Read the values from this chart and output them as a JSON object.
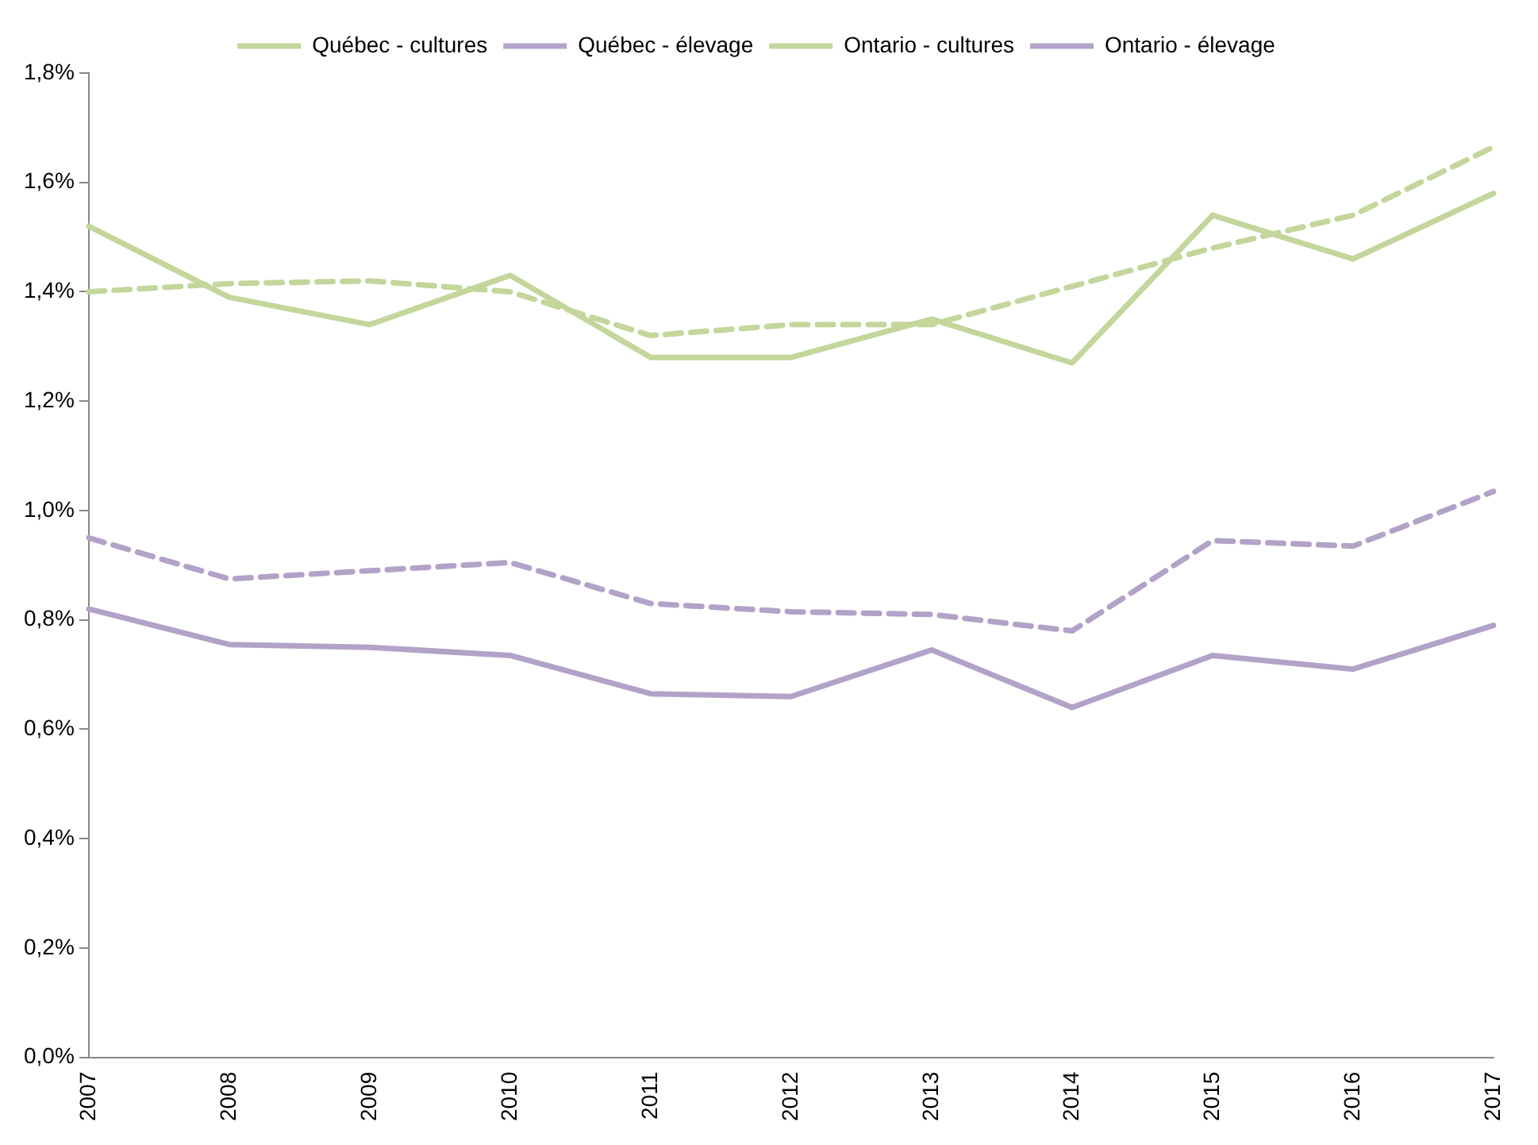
{
  "chart_data": {
    "type": "line",
    "categories": [
      "2007",
      "2008",
      "2009",
      "2010",
      "2011",
      "2012",
      "2013",
      "2014",
      "2015",
      "2016",
      "2017"
    ],
    "series": [
      {
        "name": "Québec - cultures",
        "color": "#c3d69b",
        "line_style": "solid",
        "values": [
          1.52,
          1.39,
          1.34,
          1.43,
          1.28,
          1.28,
          1.35,
          1.27,
          1.54,
          1.46,
          1.58
        ]
      },
      {
        "name": "Québec - élevage",
        "color": "#b3a2c7",
        "line_style": "solid",
        "values": [
          0.82,
          0.755,
          0.75,
          0.735,
          0.665,
          0.66,
          0.745,
          0.64,
          0.735,
          0.71,
          0.79
        ]
      },
      {
        "name": "Ontario - cultures",
        "color": "#c3d69b",
        "line_style": "dashed",
        "values": [
          1.4,
          1.415,
          1.42,
          1.4,
          1.32,
          1.34,
          1.34,
          1.41,
          1.48,
          1.54,
          1.665
        ]
      },
      {
        "name": "Ontario - élevage",
        "color": "#b3a2c7",
        "line_style": "dashed",
        "values": [
          0.95,
          0.875,
          0.89,
          0.905,
          0.83,
          0.815,
          0.81,
          0.78,
          0.945,
          0.935,
          1.035
        ]
      }
    ],
    "ylim": [
      0,
      1.8
    ],
    "yticks": [
      {
        "value": 0,
        "label": "0,0%"
      },
      {
        "value": 0.2,
        "label": "0,2%"
      },
      {
        "value": 0.4,
        "label": "0,4%"
      },
      {
        "value": 0.6,
        "label": "0,6%"
      },
      {
        "value": 0.8,
        "label": "0,8%"
      },
      {
        "value": 1,
        "label": "1,0%"
      },
      {
        "value": 1.2,
        "label": "1,2%"
      },
      {
        "value": 1.4,
        "label": "1,4%"
      },
      {
        "value": 1.6,
        "label": "1,6%"
      },
      {
        "value": 1.8,
        "label": "1,8%"
      }
    ],
    "grid": false,
    "legend": "top",
    "marker": "none"
  }
}
